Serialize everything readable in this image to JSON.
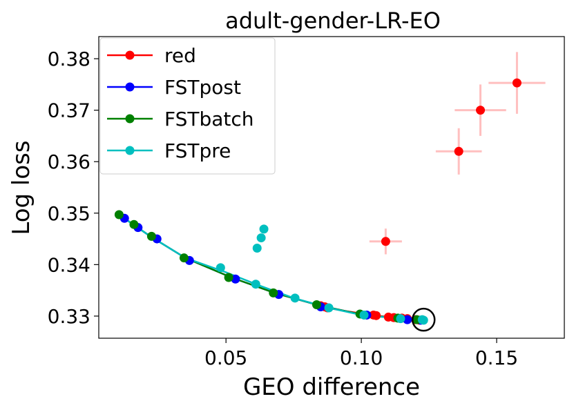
{
  "chart_data": {
    "type": "scatter",
    "title": "adult-gender-LR-EO",
    "xlabel": "GEO difference",
    "ylabel": "Log loss",
    "xlim": [
      0.003,
      0.175
    ],
    "ylim": [
      0.3257,
      0.3843
    ],
    "xticks": [
      0.05,
      0.1,
      0.15
    ],
    "xtick_labels": [
      "0.05",
      "0.10",
      "0.15"
    ],
    "yticks": [
      0.33,
      0.34,
      0.35,
      0.36,
      0.37,
      0.38
    ],
    "ytick_labels": [
      "0.33",
      "0.34",
      "0.35",
      "0.36",
      "0.37",
      "0.38"
    ],
    "legend_position": "upper-left",
    "series": [
      {
        "name": "red",
        "color": "#ff0000",
        "line": [
          [
            0.085,
            0.3318
          ],
          [
            0.095,
            0.3309
          ],
          [
            0.105,
            0.3301
          ],
          [
            0.113,
            0.3297
          ],
          [
            0.119,
            0.3293
          ],
          [
            0.122,
            0.3292
          ]
        ],
        "points": [
          [
            0.085,
            0.332
          ],
          [
            0.0865,
            0.3318
          ],
          [
            0.0875,
            0.3316
          ],
          [
            0.1045,
            0.3302
          ],
          [
            0.1055,
            0.3301
          ],
          [
            0.11,
            0.3298
          ],
          [
            0.112,
            0.3297
          ],
          [
            0.115,
            0.3296
          ],
          [
            0.117,
            0.3295
          ],
          [
            0.12,
            0.3293
          ],
          [
            0.1215,
            0.3292
          ]
        ],
        "errorbar_points": [
          {
            "x": 0.109,
            "y": 0.3445,
            "xerr": 0.006,
            "yerr": 0.0025
          },
          {
            "x": 0.136,
            "y": 0.362,
            "xerr": 0.0085,
            "yerr": 0.0045
          },
          {
            "x": 0.144,
            "y": 0.37,
            "xerr": 0.0095,
            "yerr": 0.005
          },
          {
            "x": 0.1575,
            "y": 0.3753,
            "xerr": 0.0105,
            "yerr": 0.006
          }
        ]
      },
      {
        "name": "FSTpost",
        "color": "#0000ff",
        "line": [
          [
            0.0105,
            0.3497
          ],
          [
            0.022,
            0.3455
          ],
          [
            0.035,
            0.3413
          ],
          [
            0.052,
            0.3375
          ],
          [
            0.068,
            0.3345
          ],
          [
            0.085,
            0.332
          ],
          [
            0.1,
            0.3303
          ],
          [
            0.113,
            0.3296
          ],
          [
            0.122,
            0.3293
          ]
        ],
        "points": [
          [
            0.0125,
            0.349
          ],
          [
            0.0175,
            0.3472
          ],
          [
            0.0245,
            0.345
          ],
          [
            0.0365,
            0.3408
          ],
          [
            0.0535,
            0.3372
          ],
          [
            0.0695,
            0.3342
          ],
          [
            0.085,
            0.3318
          ],
          [
            0.102,
            0.3302
          ],
          [
            0.117,
            0.3293
          ],
          [
            0.122,
            0.3292
          ]
        ]
      },
      {
        "name": "FSTbatch",
        "color": "#008000",
        "line": [
          [
            0.0105,
            0.3497
          ],
          [
            0.022,
            0.3455
          ],
          [
            0.035,
            0.3413
          ],
          [
            0.052,
            0.3375
          ],
          [
            0.068,
            0.3345
          ],
          [
            0.085,
            0.332
          ],
          [
            0.1,
            0.3303
          ],
          [
            0.113,
            0.3296
          ],
          [
            0.122,
            0.3293
          ]
        ],
        "points": [
          [
            0.0105,
            0.3497
          ],
          [
            0.016,
            0.3478
          ],
          [
            0.0225,
            0.3455
          ],
          [
            0.0345,
            0.3413
          ],
          [
            0.051,
            0.3375
          ],
          [
            0.0675,
            0.3345
          ],
          [
            0.0835,
            0.3322
          ],
          [
            0.0995,
            0.3304
          ],
          [
            0.1135,
            0.3296
          ],
          [
            0.1205,
            0.3293
          ]
        ]
      },
      {
        "name": "FSTpre",
        "color": "#00bfbf",
        "line": [
          [
            0.0105,
            0.3497
          ],
          [
            0.022,
            0.3455
          ],
          [
            0.035,
            0.3413
          ],
          [
            0.05,
            0.3385
          ],
          [
            0.062,
            0.336
          ],
          [
            0.075,
            0.3335
          ],
          [
            0.088,
            0.3316
          ],
          [
            0.101,
            0.3301
          ],
          [
            0.114,
            0.3296
          ],
          [
            0.123,
            0.3293
          ]
        ],
        "points": [
          [
            0.048,
            0.3394
          ],
          [
            0.061,
            0.3362
          ],
          [
            0.0755,
            0.3335
          ],
          [
            0.088,
            0.3316
          ],
          [
            0.101,
            0.3302
          ],
          [
            0.1145,
            0.3295
          ],
          [
            0.1225,
            0.3293
          ],
          [
            0.123,
            0.3292
          ],
          [
            0.0615,
            0.3432
          ],
          [
            0.063,
            0.3452
          ],
          [
            0.064,
            0.3469
          ]
        ]
      }
    ],
    "annotation": {
      "type": "circle",
      "x": 0.123,
      "y": 0.3293
    }
  }
}
